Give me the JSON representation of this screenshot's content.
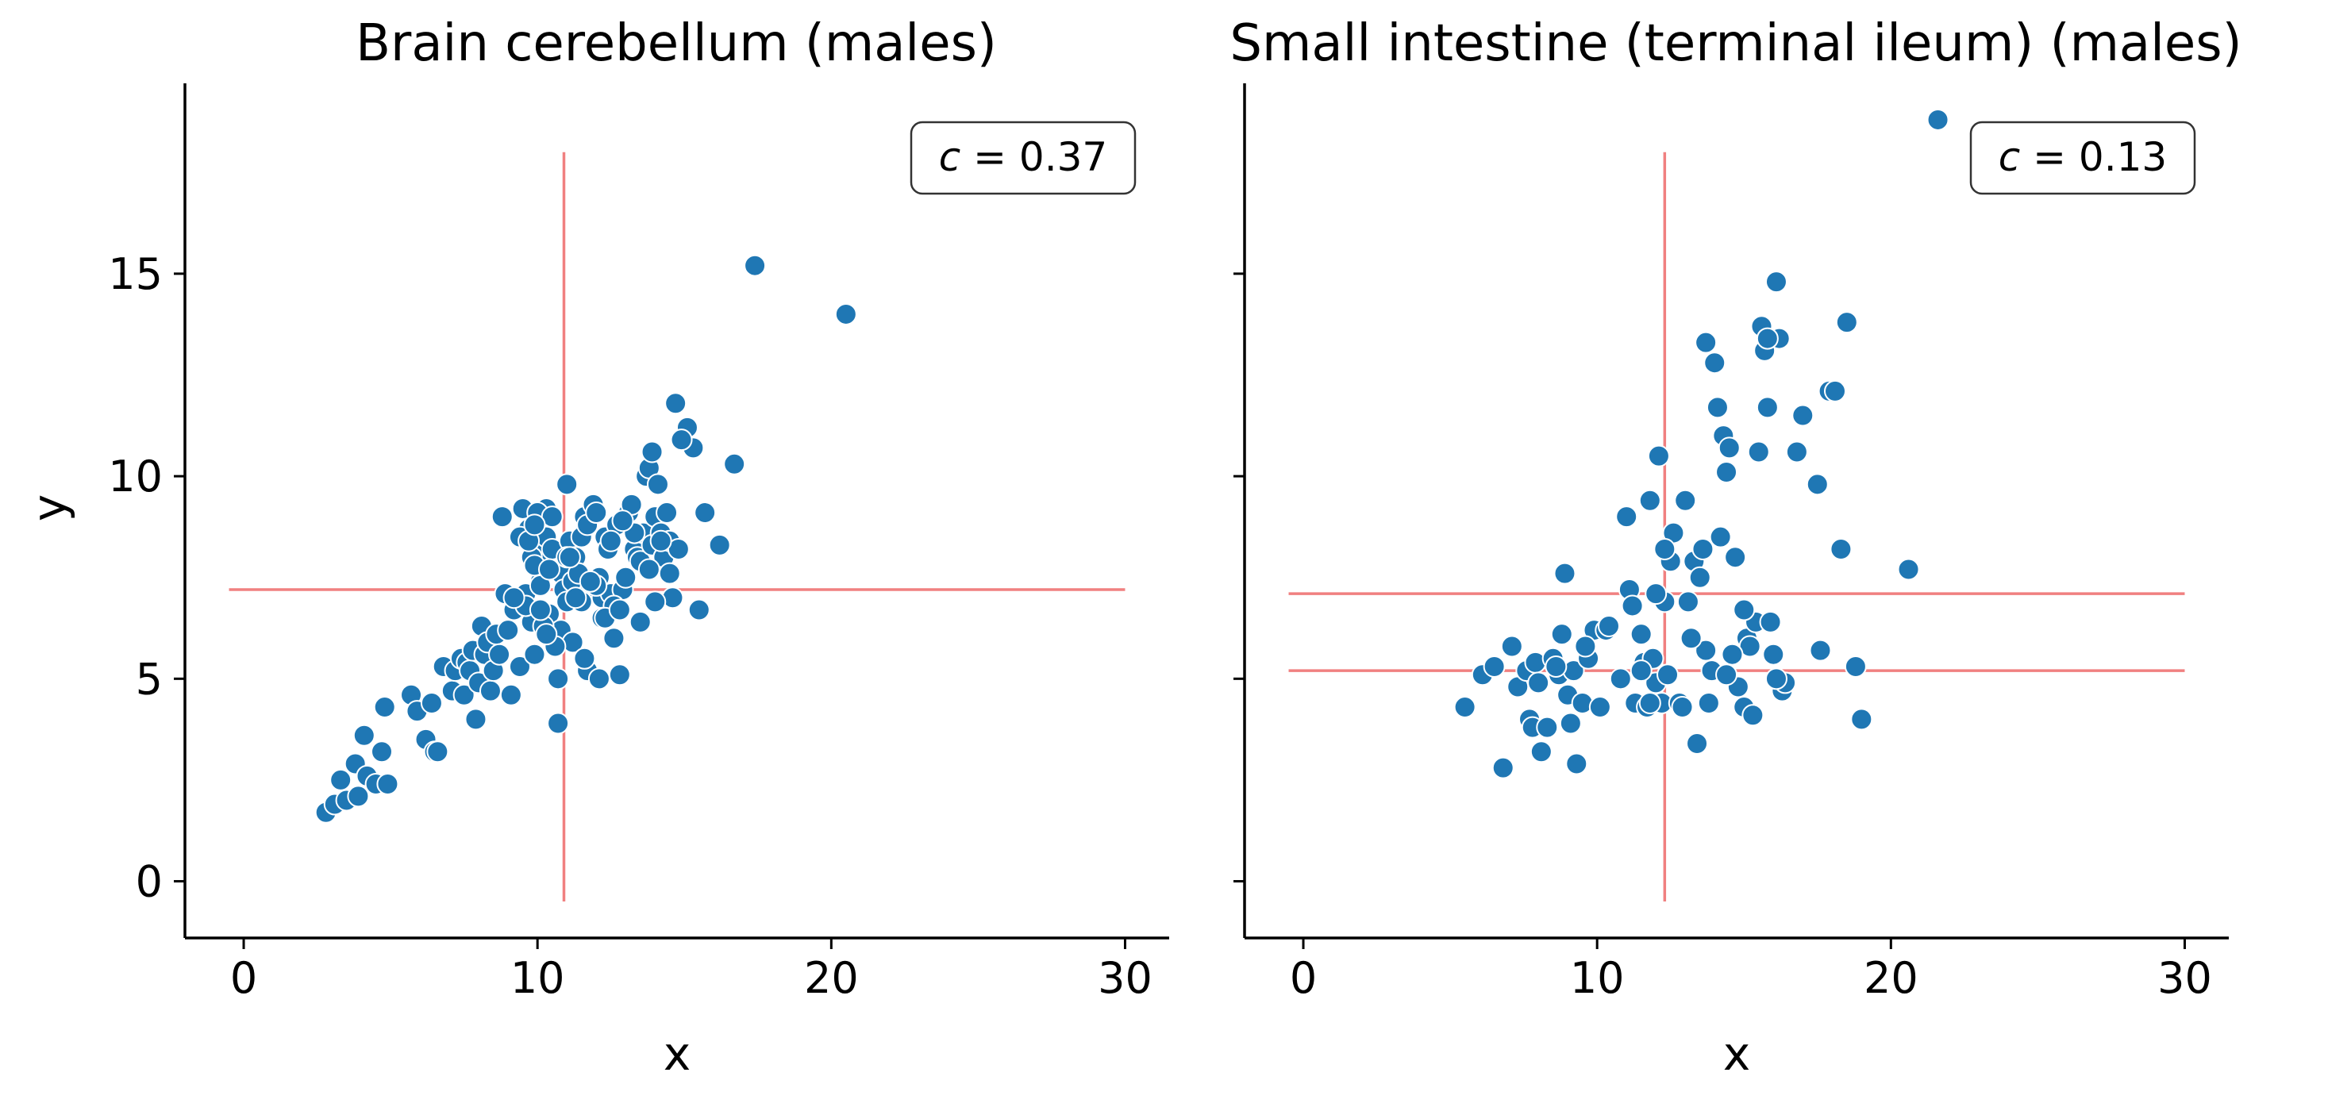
{
  "colors": {
    "points": "#1f77b4",
    "point_edge": "#ffffff",
    "reference_lines": "#f08080",
    "axes": "#000000"
  },
  "chart_data": [
    {
      "type": "scatter",
      "title": "Brain cerebellum (males)",
      "xlabel": "x",
      "ylabel": "y",
      "xlim": [
        -2,
        31.5
      ],
      "ylim": [
        -1.4,
        19.7
      ],
      "xticks": [
        0,
        10,
        20,
        30
      ],
      "yticks": [
        0,
        5,
        10,
        15
      ],
      "xtick_labels": [
        "0",
        "10",
        "20",
        "30"
      ],
      "ytick_labels": [
        "0",
        "5",
        "10",
        "15"
      ],
      "grid": false,
      "annotation": {
        "symbol": "c",
        "text": " = 0.37",
        "placement": "top-right"
      },
      "vlines": [
        {
          "x": 10.9,
          "y_range": [
            -0.5,
            18
          ]
        }
      ],
      "hlines": [
        {
          "y": 7.2,
          "x_range": [
            -0.5,
            30
          ]
        }
      ],
      "points": {
        "x": [
          2.8,
          3.1,
          3.3,
          3.5,
          3.8,
          3.9,
          4.1,
          4.2,
          4.5,
          4.7,
          4.8,
          4.9,
          5.7,
          5.9,
          6.2,
          6.4,
          6.5,
          6.6,
          6.8,
          7.1,
          7.2,
          7.4,
          7.5,
          7.6,
          7.7,
          7.8,
          7.9,
          8.0,
          8.1,
          8.2,
          8.3,
          8.4,
          8.5,
          8.6,
          8.7,
          8.9,
          9.0,
          9.1,
          9.2,
          9.3,
          9.4,
          9.5,
          9.6,
          9.7,
          9.8,
          9.9,
          10.0,
          10.0,
          10.1,
          10.2,
          10.3,
          10.3,
          10.4,
          10.5,
          10.6,
          10.7,
          10.8,
          10.9,
          11.0,
          11.1,
          11.2,
          11.3,
          11.4,
          11.5,
          11.6,
          11.7,
          11.8,
          11.9,
          12.0,
          12.1,
          12.2,
          12.3,
          12.4,
          12.5,
          12.6,
          12.7,
          12.8,
          12.9,
          13.0,
          13.1,
          13.2,
          13.3,
          13.4,
          13.5,
          13.6,
          13.7,
          13.8,
          13.9,
          14.0,
          14.1,
          14.2,
          14.3,
          14.4,
          14.5,
          14.6,
          14.7,
          14.8,
          15.1,
          15.3,
          15.5,
          15.7,
          16.2,
          16.7,
          17.4,
          20.5,
          9.6,
          9.8,
          10.1,
          10.4,
          10.8,
          11.2,
          11.7,
          12.2,
          12.6,
          13.0,
          13.3,
          13.8,
          14.2,
          14.5,
          10.0,
          10.5,
          11.0,
          11.5,
          12.0,
          9.4,
          9.9,
          10.2,
          10.6,
          11.3,
          11.8,
          12.3,
          12.8,
          13.5,
          14.0,
          10.1,
          10.7,
          9.7,
          11.1,
          12.5,
          8.8,
          9.2,
          10.3,
          11.6,
          12.9,
          13.9,
          11.0,
          10.4,
          9.9,
          12.1,
          14.9
        ],
        "y": [
          1.7,
          1.9,
          2.5,
          2.0,
          2.9,
          2.1,
          3.6,
          2.6,
          2.4,
          3.2,
          4.3,
          2.4,
          4.6,
          4.2,
          3.5,
          4.4,
          3.2,
          3.2,
          5.3,
          4.7,
          5.2,
          5.5,
          4.6,
          5.4,
          5.2,
          5.7,
          4.0,
          4.9,
          6.3,
          5.6,
          5.9,
          4.7,
          5.2,
          6.1,
          5.6,
          7.1,
          6.2,
          4.6,
          6.7,
          7.0,
          5.3,
          9.2,
          7.1,
          8.7,
          6.4,
          5.6,
          7.8,
          7.9,
          7.4,
          8.1,
          9.2,
          8.5,
          6.4,
          8.2,
          6.1,
          5.0,
          7.6,
          7.2,
          6.9,
          8.4,
          7.4,
          8.0,
          7.6,
          8.5,
          9.0,
          8.8,
          7.2,
          9.3,
          9.1,
          7.5,
          7.0,
          8.5,
          8.2,
          7.1,
          6.0,
          8.8,
          5.1,
          7.2,
          8.9,
          9.1,
          9.3,
          8.2,
          8.0,
          7.9,
          8.6,
          10.0,
          10.2,
          8.3,
          9.0,
          9.8,
          8.6,
          8.0,
          9.1,
          8.4,
          7.0,
          11.8,
          8.2,
          11.2,
          10.7,
          6.7,
          9.1,
          8.3,
          10.3,
          15.2,
          14.0,
          6.8,
          8.0,
          7.3,
          6.6,
          6.2,
          5.9,
          5.2,
          6.5,
          6.8,
          7.5,
          8.6,
          7.7,
          8.4,
          7.6,
          9.1,
          9.0,
          8.0,
          6.9,
          7.3,
          8.5,
          7.8,
          6.3,
          5.8,
          7.0,
          7.4,
          6.5,
          6.7,
          6.4,
          6.9,
          6.7,
          3.9,
          8.4,
          8.0,
          8.4,
          9.0,
          7.0,
          6.1,
          5.5,
          8.9,
          10.6,
          9.8,
          7.7,
          8.8,
          5.0,
          10.9
        ]
      }
    },
    {
      "type": "scatter",
      "title": "Small intestine (terminal ileum) (males)",
      "xlabel": "x",
      "ylabel": "",
      "xlim": [
        -2,
        31.5
      ],
      "ylim": [
        -1.4,
        19.7
      ],
      "xticks": [
        0,
        10,
        20,
        30
      ],
      "yticks": [
        0,
        5,
        10,
        15
      ],
      "xtick_labels": [
        "0",
        "10",
        "20",
        "30"
      ],
      "ytick_labels": [],
      "grid": false,
      "annotation": {
        "symbol": "c",
        "text": " = 0.13",
        "placement": "top-right"
      },
      "vlines": [
        {
          "x": 12.3,
          "y_range": [
            -0.5,
            18
          ]
        }
      ],
      "hlines": [
        {
          "y": 7.1,
          "x_range": [
            -0.5,
            30
          ]
        },
        {
          "y": 5.2,
          "x_range": [
            -0.5,
            30
          ]
        }
      ],
      "points": {
        "x": [
          5.5,
          6.1,
          6.5,
          6.8,
          7.1,
          7.3,
          7.6,
          7.7,
          7.8,
          7.9,
          8.0,
          8.1,
          8.3,
          8.5,
          8.7,
          8.8,
          8.9,
          9.0,
          9.1,
          9.2,
          9.3,
          9.5,
          9.7,
          9.9,
          10.1,
          10.3,
          10.8,
          11.0,
          11.1,
          11.2,
          11.3,
          11.5,
          11.6,
          11.7,
          11.8,
          11.9,
          12.0,
          12.1,
          12.2,
          12.3,
          12.4,
          12.5,
          12.6,
          12.8,
          13.0,
          13.1,
          13.3,
          13.4,
          13.5,
          13.6,
          13.7,
          13.8,
          13.9,
          14.0,
          14.1,
          14.2,
          14.3,
          14.4,
          14.5,
          14.6,
          14.7,
          14.8,
          15.0,
          15.1,
          15.2,
          15.3,
          15.4,
          15.5,
          15.6,
          15.7,
          15.8,
          15.9,
          16.0,
          16.1,
          16.2,
          16.3,
          16.4,
          16.8,
          17.0,
          17.5,
          17.6,
          17.9,
          18.1,
          18.3,
          18.5,
          18.8,
          19.0,
          20.6,
          21.6,
          8.6,
          9.6,
          10.4,
          11.5,
          12.0,
          12.9,
          13.7,
          14.4,
          15.0,
          16.1,
          11.8,
          12.3,
          13.2,
          14.6,
          15.8
        ],
        "y": [
          4.3,
          5.1,
          5.3,
          2.8,
          5.8,
          4.8,
          5.2,
          4.0,
          3.8,
          5.4,
          4.9,
          3.2,
          3.8,
          5.5,
          5.1,
          6.1,
          7.6,
          4.6,
          3.9,
          5.2,
          2.9,
          4.4,
          5.5,
          6.2,
          4.3,
          6.2,
          5.0,
          9.0,
          7.2,
          6.8,
          4.4,
          6.1,
          5.4,
          4.3,
          9.4,
          5.5,
          4.9,
          10.5,
          4.4,
          6.9,
          5.1,
          7.9,
          8.6,
          4.4,
          9.4,
          6.9,
          7.9,
          3.4,
          7.5,
          8.2,
          13.3,
          4.4,
          5.2,
          12.8,
          11.7,
          8.5,
          11.0,
          10.1,
          10.7,
          5.6,
          8.0,
          4.8,
          4.3,
          6.0,
          5.8,
          4.1,
          6.4,
          10.6,
          13.7,
          13.1,
          11.7,
          6.4,
          5.6,
          14.8,
          13.4,
          4.7,
          4.9,
          10.6,
          11.5,
          9.8,
          5.7,
          12.1,
          12.1,
          8.2,
          13.8,
          5.3,
          4.0,
          7.7,
          18.8,
          5.3,
          5.8,
          6.3,
          5.2,
          7.1,
          4.3,
          5.7,
          5.1,
          6.7,
          5.0,
          4.4,
          8.2,
          6.0,
          5.6,
          13.4
        ]
      }
    }
  ]
}
